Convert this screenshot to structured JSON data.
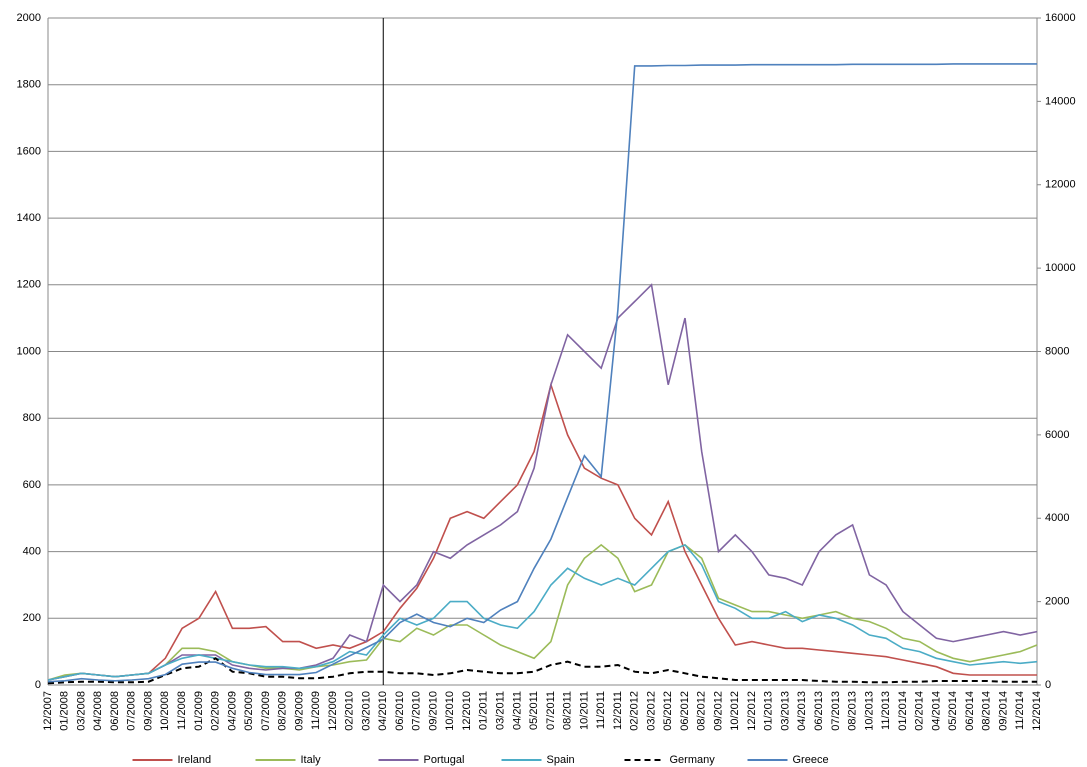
{
  "chart_data": {
    "type": "line",
    "categories": [
      "12/2007",
      "01/2008",
      "03/2008",
      "04/2008",
      "06/2008",
      "07/2008",
      "09/2008",
      "10/2008",
      "11/2008",
      "01/2009",
      "02/2009",
      "04/2009",
      "05/2009",
      "07/2009",
      "08/2009",
      "09/2009",
      "11/2009",
      "12/2009",
      "02/2010",
      "03/2010",
      "04/2010",
      "06/2010",
      "07/2010",
      "09/2010",
      "10/2010",
      "12/2010",
      "01/2011",
      "03/2011",
      "04/2011",
      "05/2011",
      "07/2011",
      "08/2011",
      "10/2011",
      "11/2011",
      "12/2011",
      "02/2012",
      "03/2012",
      "05/2012",
      "06/2012",
      "08/2012",
      "09/2012",
      "10/2012",
      "12/2012",
      "01/2013",
      "03/2013",
      "04/2013",
      "06/2013",
      "07/2013",
      "08/2013",
      "10/2013",
      "11/2013",
      "01/2014",
      "02/2014",
      "04/2014",
      "05/2014",
      "06/2014",
      "08/2014",
      "09/2014",
      "11/2014",
      "12/2014"
    ],
    "series": [
      {
        "name": "Ireland",
        "color": "#c0504d",
        "values": [
          15,
          25,
          35,
          30,
          25,
          30,
          35,
          80,
          170,
          200,
          280,
          170,
          170,
          175,
          130,
          130,
          110,
          120,
          110,
          130,
          160,
          230,
          290,
          380,
          500,
          520,
          500,
          550,
          600,
          700,
          900,
          750,
          650,
          620,
          600,
          500,
          450,
          550,
          400,
          300,
          200,
          120,
          130,
          120,
          110,
          110,
          105,
          100,
          95,
          90,
          85,
          75,
          65,
          55,
          35,
          30,
          30,
          30,
          30,
          30
        ]
      },
      {
        "name": "Italy",
        "color": "#9bbb59",
        "values": [
          15,
          30,
          35,
          30,
          25,
          30,
          35,
          60,
          110,
          110,
          100,
          70,
          60,
          50,
          50,
          45,
          55,
          60,
          70,
          75,
          140,
          130,
          170,
          150,
          180,
          180,
          150,
          120,
          100,
          80,
          130,
          300,
          380,
          420,
          380,
          280,
          300,
          400,
          420,
          380,
          260,
          240,
          220,
          220,
          210,
          200,
          210,
          220,
          200,
          190,
          170,
          140,
          130,
          100,
          80,
          70,
          80,
          90,
          100,
          120
        ]
      },
      {
        "name": "Portugal",
        "color": "#8064a2",
        "values": [
          15,
          25,
          35,
          30,
          25,
          30,
          35,
          60,
          90,
          90,
          90,
          60,
          50,
          45,
          50,
          50,
          60,
          80,
          150,
          130,
          300,
          250,
          300,
          400,
          380,
          420,
          450,
          480,
          520,
          650,
          900,
          1050,
          1000,
          950,
          1100,
          1150,
          1200,
          900,
          1100,
          700,
          400,
          450,
          400,
          330,
          320,
          300,
          400,
          450,
          480,
          330,
          300,
          220,
          180,
          140,
          130,
          140,
          150,
          160,
          150,
          160
        ]
      },
      {
        "name": "Spain",
        "color": "#4bacc6",
        "values": [
          15,
          25,
          35,
          30,
          25,
          30,
          35,
          60,
          80,
          90,
          80,
          70,
          60,
          55,
          55,
          50,
          55,
          70,
          100,
          90,
          150,
          200,
          180,
          200,
          250,
          250,
          200,
          180,
          170,
          220,
          300,
          350,
          320,
          300,
          320,
          300,
          350,
          400,
          420,
          360,
          250,
          230,
          200,
          200,
          220,
          190,
          210,
          200,
          180,
          150,
          140,
          110,
          100,
          80,
          70,
          60,
          65,
          70,
          65,
          70
        ]
      },
      {
        "name": "Germany",
        "color": "#000000",
        "dashed": true,
        "values": [
          5,
          8,
          10,
          10,
          8,
          8,
          10,
          30,
          50,
          55,
          80,
          40,
          35,
          25,
          25,
          20,
          20,
          25,
          35,
          40,
          40,
          35,
          35,
          30,
          35,
          45,
          40,
          35,
          35,
          40,
          60,
          70,
          55,
          55,
          60,
          40,
          35,
          45,
          35,
          25,
          20,
          15,
          15,
          15,
          15,
          15,
          12,
          10,
          10,
          8,
          8,
          10,
          10,
          12,
          12,
          12,
          12,
          10,
          10,
          10
        ]
      },
      {
        "name": "Greece",
        "color": "#4f81bd",
        "axis": "y2",
        "values": [
          80,
          100,
          150,
          120,
          100,
          120,
          150,
          250,
          500,
          550,
          550,
          400,
          300,
          250,
          250,
          250,
          300,
          500,
          700,
          900,
          1100,
          1500,
          1700,
          1500,
          1400,
          1600,
          1500,
          1800,
          2000,
          2800,
          3500,
          4500,
          5500,
          5000,
          9000,
          14850,
          14850,
          14860,
          14860,
          14870,
          14870,
          14870,
          14880,
          14880,
          14880,
          14880,
          14880,
          14880,
          14890,
          14890,
          14890,
          14890,
          14890,
          14890,
          14900,
          14900,
          14900,
          14900,
          14900,
          14900
        ]
      }
    ],
    "vline": "04/2010",
    "ylim": [
      0,
      2000
    ],
    "yticks": [
      0,
      200,
      400,
      600,
      800,
      1000,
      1200,
      1400,
      1600,
      1800,
      2000
    ],
    "y2lim": [
      0,
      16000
    ],
    "y2ticks": [
      0,
      2000,
      4000,
      6000,
      8000,
      10000,
      12000,
      14000,
      16000
    ],
    "grid": true,
    "legend": "bottom"
  }
}
